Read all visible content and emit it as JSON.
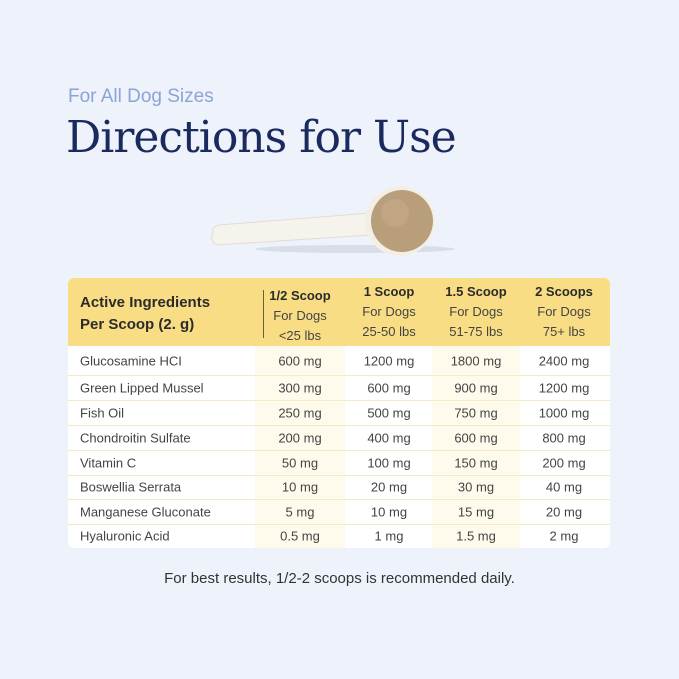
{
  "subtitle": "For All Dog Sizes",
  "title": "Directions for Use",
  "table": {
    "header_label_line1": "Active Ingredients",
    "header_label_line2": "Per Scoop (2. g)",
    "columns": [
      {
        "scoop": "1/2 Scoop",
        "line2": "For Dogs",
        "line3": "<25 lbs"
      },
      {
        "scoop": "1 Scoop",
        "line2": "For Dogs",
        "line3": "25-50 lbs"
      },
      {
        "scoop": "1.5 Scoop",
        "line2": "For Dogs",
        "line3": "51-75 lbs"
      },
      {
        "scoop": "2 Scoops",
        "line2": "For Dogs",
        "line3": "75+ lbs"
      }
    ],
    "rows": [
      {
        "name": "Glucosamine HCI",
        "values": [
          "600 mg",
          "1200 mg",
          "1800 mg",
          "2400 mg"
        ]
      },
      {
        "name": "Green Lipped Mussel",
        "values": [
          "300 mg",
          "600 mg",
          "900 mg",
          "1200 mg"
        ]
      },
      {
        "name": "Fish Oil",
        "values": [
          "250 mg",
          "500 mg",
          "750 mg",
          "1000 mg"
        ]
      },
      {
        "name": "Chondroitin Sulfate",
        "values": [
          "200 mg",
          "400 mg",
          "600 mg",
          "800 mg"
        ]
      },
      {
        "name": "Vitamin C",
        "values": [
          "50 mg",
          "100 mg",
          "150 mg",
          "200 mg"
        ]
      },
      {
        "name": "Boswellia Serrata",
        "values": [
          "10 mg",
          "20 mg",
          "30 mg",
          "40 mg"
        ]
      },
      {
        "name": "Manganese Gluconate",
        "values": [
          "5 mg",
          "10 mg",
          "15 mg",
          "20 mg"
        ]
      },
      {
        "name": "Hyaluronic Acid",
        "values": [
          "0.5 mg",
          "1 mg",
          "1.5 mg",
          "2 mg"
        ]
      }
    ]
  },
  "footer": "For best results, 1/2-2 scoops is recommended daily.",
  "colors": {
    "background": "#eef2fb",
    "title": "#1a2a5e",
    "subtitle": "#8ba4d6",
    "header": "#f8dd84"
  }
}
